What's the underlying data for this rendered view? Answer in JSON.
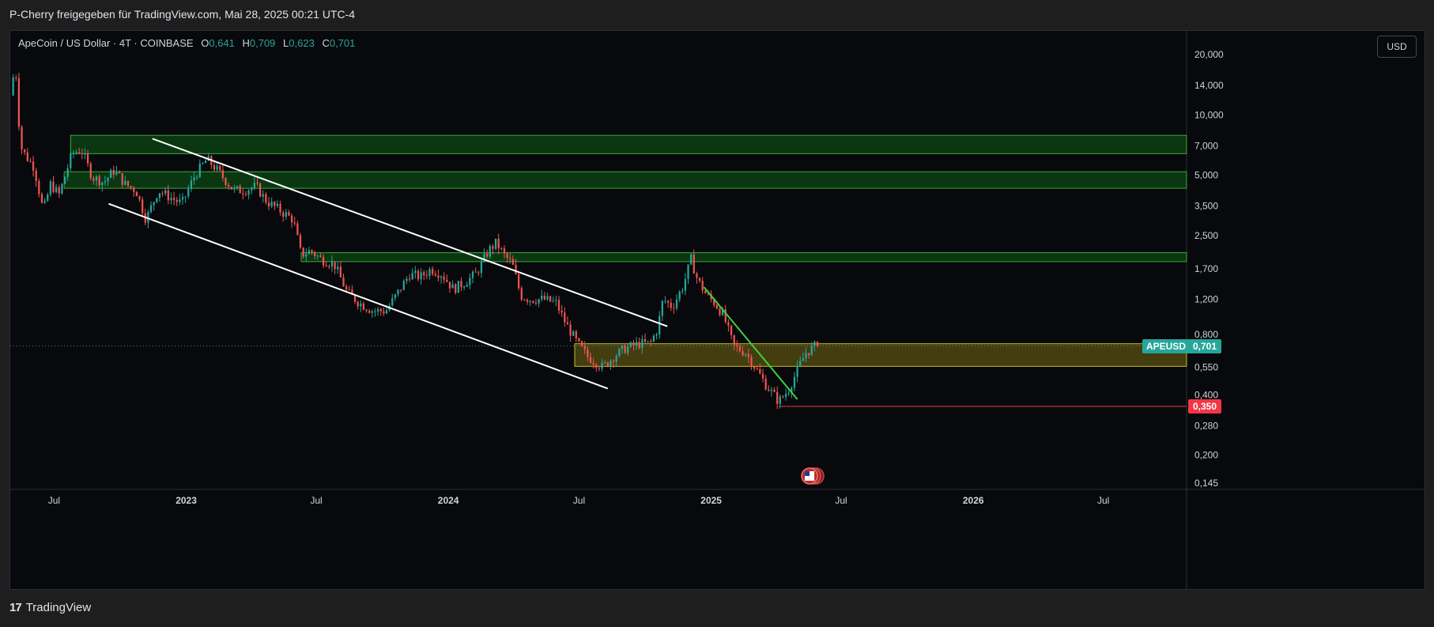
{
  "header": {
    "text": "P-Cherry freigegeben für TradingView.com, Mai 28, 2025 00:21 UTC-4"
  },
  "legend": {
    "title": "ApeCoin / US Dollar · 4T · COINBASE",
    "o_label": "O",
    "o_value": "0,641",
    "h_label": "H",
    "h_value": "0,709",
    "l_label": "L",
    "l_value": "0,623",
    "c_label": "C",
    "c_value": "0,701"
  },
  "currency_button": "USD",
  "footer": {
    "brand": "TradingView",
    "brand_mark": "17"
  },
  "colors": {
    "up": "#26a69a",
    "down": "#ef5350",
    "zone_green": "#0b3d12",
    "zone_yellow": "#4a4410",
    "last_price": "#26a69a",
    "support": "#f23645"
  },
  "chart_data": {
    "type": "candlestick",
    "scale": "log",
    "y_ticks": [
      {
        "value": 20.0,
        "label": "20,000"
      },
      {
        "value": 14.0,
        "label": "14,000"
      },
      {
        "value": 10.0,
        "label": "10,000"
      },
      {
        "value": 7.0,
        "label": "7,000"
      },
      {
        "value": 5.0,
        "label": "5,000"
      },
      {
        "value": 3.5,
        "label": "3,500"
      },
      {
        "value": 2.5,
        "label": "2,500"
      },
      {
        "value": 1.7,
        "label": "1,700"
      },
      {
        "value": 1.2,
        "label": "1,200"
      },
      {
        "value": 0.8,
        "label": "0,800"
      },
      {
        "value": 0.55,
        "label": "0,550"
      },
      {
        "value": 0.4,
        "label": "0,400"
      },
      {
        "value": 0.28,
        "label": "0,280"
      },
      {
        "value": 0.2,
        "label": "0,200"
      },
      {
        "value": 0.145,
        "label": "0,145"
      }
    ],
    "x_ticks": [
      {
        "date": "2022-07-01",
        "label": "Jul"
      },
      {
        "date": "2023-01-01",
        "label": "2023"
      },
      {
        "date": "2023-07-01",
        "label": "Jul"
      },
      {
        "date": "2024-01-01",
        "label": "2024"
      },
      {
        "date": "2024-07-01",
        "label": "Jul"
      },
      {
        "date": "2025-01-01",
        "label": "2025"
      },
      {
        "date": "2025-07-01",
        "label": "Jul"
      },
      {
        "date": "2026-01-01",
        "label": "2026"
      },
      {
        "date": "2026-07-01",
        "label": "Jul"
      }
    ],
    "price_path": [
      [
        "2022-05-03",
        12.5
      ],
      [
        "2022-05-10",
        18.0
      ],
      [
        "2022-05-17",
        7.0
      ],
      [
        "2022-05-25",
        6.2
      ],
      [
        "2022-06-05",
        5.5
      ],
      [
        "2022-06-18",
        3.3
      ],
      [
        "2022-06-28",
        4.5
      ],
      [
        "2022-07-10",
        4.0
      ],
      [
        "2022-07-28",
        6.4
      ],
      [
        "2022-08-10",
        6.7
      ],
      [
        "2022-08-25",
        4.9
      ],
      [
        "2022-09-10",
        4.6
      ],
      [
        "2022-09-25",
        5.3
      ],
      [
        "2022-10-10",
        4.5
      ],
      [
        "2022-10-25",
        4.2
      ],
      [
        "2022-11-08",
        3.0
      ],
      [
        "2022-11-25",
        4.2
      ],
      [
        "2022-12-10",
        3.9
      ],
      [
        "2022-12-28",
        3.6
      ],
      [
        "2023-01-15",
        5.0
      ],
      [
        "2023-02-01",
        6.0
      ],
      [
        "2023-02-15",
        5.3
      ],
      [
        "2023-03-10",
        4.2
      ],
      [
        "2023-03-25",
        4.2
      ],
      [
        "2023-04-10",
        4.4
      ],
      [
        "2023-04-25",
        3.7
      ],
      [
        "2023-05-15",
        3.3
      ],
      [
        "2023-06-01",
        3.0
      ],
      [
        "2023-06-12",
        2.0
      ],
      [
        "2023-06-25",
        2.1
      ],
      [
        "2023-07-10",
        1.9
      ],
      [
        "2023-07-28",
        1.8
      ],
      [
        "2023-08-15",
        1.3
      ],
      [
        "2023-09-01",
        1.15
      ],
      [
        "2023-09-20",
        1.05
      ],
      [
        "2023-10-08",
        1.05
      ],
      [
        "2023-10-25",
        1.3
      ],
      [
        "2023-11-10",
        1.6
      ],
      [
        "2023-11-25",
        1.55
      ],
      [
        "2023-12-10",
        1.7
      ],
      [
        "2023-12-25",
        1.6
      ],
      [
        "2024-01-10",
        1.35
      ],
      [
        "2024-01-25",
        1.45
      ],
      [
        "2024-02-10",
        1.6
      ],
      [
        "2024-02-28",
        2.1
      ],
      [
        "2024-03-10",
        2.3
      ],
      [
        "2024-03-20",
        2.0
      ],
      [
        "2024-04-01",
        1.8
      ],
      [
        "2024-04-13",
        1.25
      ],
      [
        "2024-04-25",
        1.2
      ],
      [
        "2024-05-15",
        1.2
      ],
      [
        "2024-06-01",
        1.15
      ],
      [
        "2024-06-15",
        0.9
      ],
      [
        "2024-07-01",
        0.72
      ],
      [
        "2024-07-15",
        0.62
      ],
      [
        "2024-08-05",
        0.55
      ],
      [
        "2024-08-20",
        0.62
      ],
      [
        "2024-09-05",
        0.68
      ],
      [
        "2024-09-25",
        0.72
      ],
      [
        "2024-10-10",
        0.72
      ],
      [
        "2024-10-20",
        0.85
      ],
      [
        "2024-10-28",
        1.2
      ],
      [
        "2024-11-10",
        1.1
      ],
      [
        "2024-11-25",
        1.4
      ],
      [
        "2024-12-06",
        1.9
      ],
      [
        "2024-12-15",
        1.5
      ],
      [
        "2024-12-28",
        1.25
      ],
      [
        "2025-01-08",
        1.15
      ],
      [
        "2025-01-20",
        1.0
      ],
      [
        "2025-02-03",
        0.7
      ],
      [
        "2025-02-20",
        0.65
      ],
      [
        "2025-03-05",
        0.55
      ],
      [
        "2025-03-20",
        0.45
      ],
      [
        "2025-04-07",
        0.37
      ],
      [
        "2025-04-20",
        0.42
      ],
      [
        "2025-05-05",
        0.55
      ],
      [
        "2025-05-15",
        0.65
      ],
      [
        "2025-05-28",
        0.701
      ]
    ],
    "zones": [
      {
        "low": 6.4,
        "high": 7.9,
        "from": "2022-07-24",
        "color": "green"
      },
      {
        "low": 4.3,
        "high": 5.2,
        "from": "2022-07-15",
        "color": "green"
      },
      {
        "low": 1.85,
        "high": 2.05,
        "from": "2023-06-10",
        "color": "green"
      },
      {
        "low": 0.555,
        "high": 0.72,
        "from": "2024-06-25",
        "color": "yellow"
      }
    ],
    "trendlines": [
      {
        "from": [
          "2022-11-15",
          7.6
        ],
        "to": [
          "2024-11-01",
          0.88
        ],
        "color": "#ffffff"
      },
      {
        "from": [
          "2022-09-15",
          3.6
        ],
        "to": [
          "2024-08-10",
          0.43
        ],
        "color": "#ffffff"
      },
      {
        "from": [
          "2024-12-22",
          1.38
        ],
        "to": [
          "2025-05-01",
          0.38
        ],
        "color": "#3ecf3e"
      }
    ],
    "support_line": {
      "value": 0.35,
      "from": "2025-04-05",
      "label": "0,350"
    },
    "last_price": {
      "value": 0.701,
      "symbol": "APEUSD",
      "label": "0,701"
    }
  }
}
